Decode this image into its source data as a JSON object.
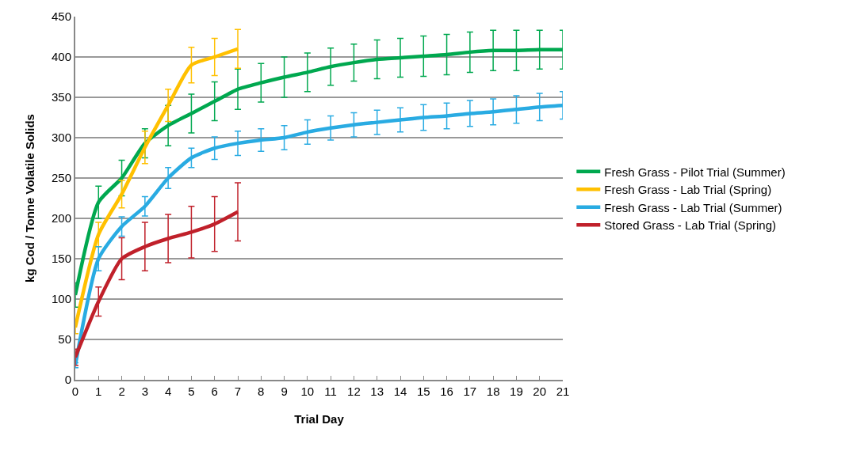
{
  "chart_data": {
    "type": "line",
    "xlabel": "Trial Day",
    "ylabel": "kg Cod / Tonne Volatile Solids",
    "x": [
      0,
      1,
      2,
      3,
      4,
      5,
      6,
      7,
      8,
      9,
      10,
      11,
      12,
      13,
      14,
      15,
      16,
      17,
      18,
      19,
      20,
      21
    ],
    "xlim": [
      0,
      21
    ],
    "xticks": [
      0,
      1,
      2,
      3,
      4,
      5,
      6,
      7,
      8,
      9,
      10,
      11,
      12,
      13,
      14,
      15,
      16,
      17,
      18,
      19,
      20,
      21
    ],
    "ylim": [
      0,
      450
    ],
    "yticks": [
      0,
      50,
      100,
      150,
      200,
      250,
      300,
      350,
      400,
      450
    ],
    "grid": "y",
    "legend": "right",
    "marker": "none",
    "line_style": "solid",
    "series": [
      {
        "name": "Fresh Grass - Pilot Trial (Summer)",
        "color": "#00a84f",
        "values": [
          105,
          220,
          250,
          293,
          315,
          330,
          345,
          360,
          368,
          375,
          381,
          388,
          393,
          397,
          399,
          401,
          403,
          406,
          408,
          408,
          409,
          409
        ],
        "errors": [
          15,
          20,
          22,
          18,
          25,
          24,
          24,
          25,
          24,
          25,
          24,
          23,
          23,
          24,
          24,
          25,
          25,
          25,
          25,
          25,
          24,
          24
        ]
      },
      {
        "name": "Fresh Grass - Lab Trial (Spring)",
        "color": "#ffc000",
        "values": [
          65,
          180,
          230,
          288,
          340,
          390,
          400,
          410,
          null,
          null,
          null,
          null,
          null,
          null,
          null,
          null,
          null,
          null,
          null,
          null,
          null,
          null
        ],
        "errors": [
          8,
          15,
          17,
          20,
          20,
          22,
          23,
          24,
          null,
          null,
          null,
          null,
          null,
          null,
          null,
          null,
          null,
          null,
          null,
          null,
          null,
          null
        ]
      },
      {
        "name": "Fresh Grass - Lab Trial (Summer)",
        "color": "#29abe2",
        "values": [
          18,
          150,
          190,
          215,
          250,
          275,
          287,
          293,
          297,
          300,
          307,
          312,
          316,
          319,
          322,
          325,
          327,
          330,
          332,
          335,
          338,
          340
        ],
        "errors": [
          3,
          15,
          12,
          12,
          13,
          12,
          14,
          15,
          14,
          15,
          15,
          15,
          15,
          15,
          15,
          16,
          16,
          16,
          16,
          17,
          17,
          17
        ]
      },
      {
        "name": "Stored Grass - Lab Trial (Spring)",
        "color": "#c0202a",
        "values": [
          28,
          97,
          150,
          165,
          175,
          183,
          193,
          208,
          null,
          null,
          null,
          null,
          null,
          null,
          null,
          null,
          null,
          null,
          null,
          null,
          null,
          null
        ],
        "errors": [
          10,
          18,
          26,
          30,
          30,
          32,
          34,
          36,
          null,
          null,
          null,
          null,
          null,
          null,
          null,
          null,
          null,
          null,
          null,
          null,
          null,
          null
        ]
      }
    ]
  }
}
